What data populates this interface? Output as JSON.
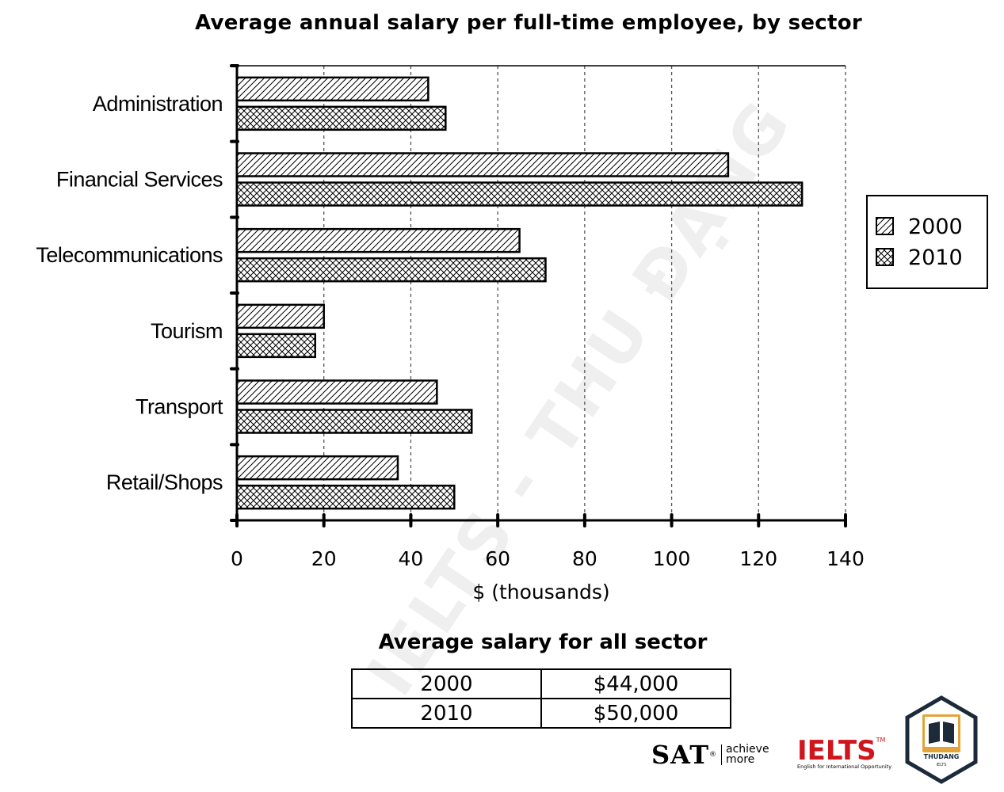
{
  "chart_data": {
    "type": "bar",
    "orientation": "horizontal",
    "title": "Average annual salary per full-time employee, by sector",
    "xlabel": "$ (thousands)",
    "ylabel": "",
    "categories": [
      "Administration",
      "Financial Services",
      "Telecommunications",
      "Tourism",
      "Transport",
      "Retail/Shops"
    ],
    "series": [
      {
        "name": "2000",
        "pattern": "diagonal-hatch",
        "values": [
          44,
          113,
          65,
          20,
          46,
          37
        ]
      },
      {
        "name": "2010",
        "pattern": "cross-hatch",
        "values": [
          48,
          130,
          71,
          18,
          54,
          50
        ]
      }
    ],
    "xlim": [
      0,
      140
    ],
    "xticks": [
      0,
      20,
      40,
      60,
      80,
      100,
      120,
      140
    ],
    "grid": "vertical dashed",
    "legend": "right",
    "bar_color": "#ffffff",
    "edge_color": "#000000"
  },
  "summary_table": {
    "title": "Average salary for all sector",
    "rows": [
      {
        "year": "2000",
        "value": "$44,000"
      },
      {
        "year": "2010",
        "value": "$50,000"
      }
    ]
  },
  "watermark": "IELTS - THU ĐẠNG",
  "logos": {
    "sat": "SAT",
    "sat_registered": "®",
    "sat_tagline_1": "achieve",
    "sat_tagline_2": "more",
    "ielts": "IELTS",
    "ielts_tm": "TM",
    "ielts_tagline": "English for International Opportunity",
    "thudang": "THUDANG",
    "thudang_sub": "IELTS"
  }
}
